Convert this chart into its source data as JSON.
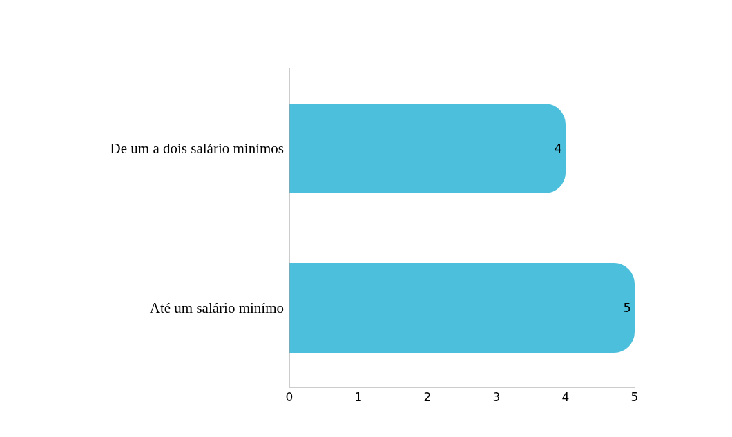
{
  "chart_data": {
    "type": "bar",
    "orientation": "horizontal",
    "categories": [
      "De um a dois salário minímos",
      "Até um salário minímo"
    ],
    "values": [
      4,
      5
    ],
    "color": "#4bbfdc",
    "xlim": [
      0,
      5
    ],
    "xticks": [
      0,
      1,
      2,
      3,
      4,
      5
    ],
    "data_labels": true,
    "grid": false,
    "legend": false
  }
}
